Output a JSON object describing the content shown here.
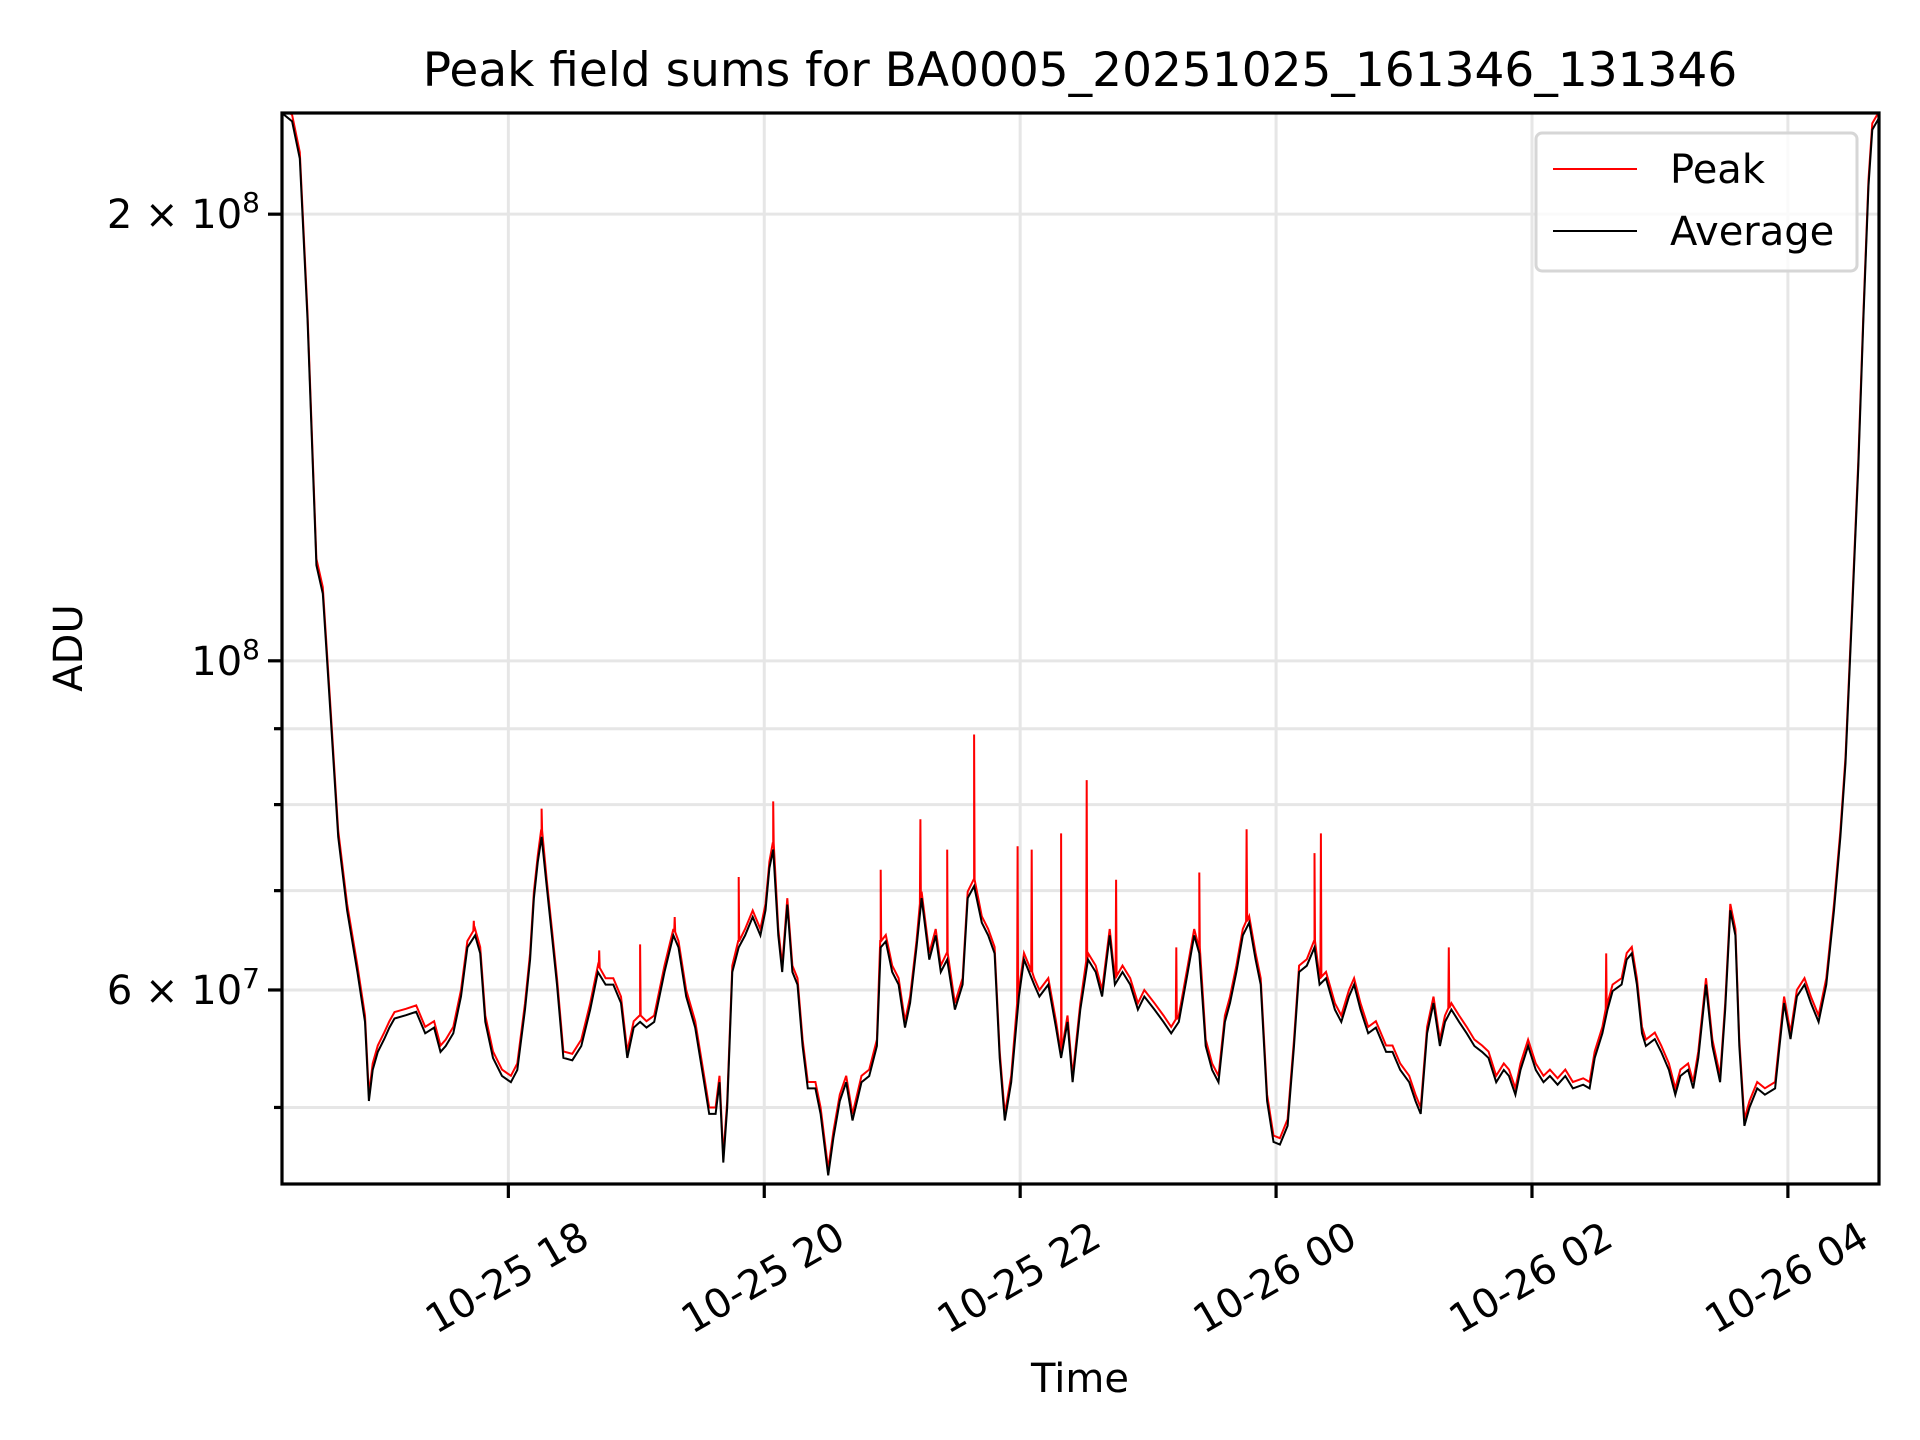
{
  "chart_data": {
    "type": "line",
    "title": "Peak field sums for BA0005_20251025_161346_131346",
    "xlabel": "Time",
    "ylabel": "ADU",
    "x_unit": "hours since 2025-10-25 00:00",
    "xlim": [
      16.231,
      28.712
    ],
    "ylim": [
      44400000,
      234000000
    ],
    "yscale": "log",
    "grid": true,
    "legend_position": "top-right",
    "xticks": [
      {
        "value": 18,
        "label": "10-25 18"
      },
      {
        "value": 20,
        "label": "10-25 20"
      },
      {
        "value": 22,
        "label": "10-25 22"
      },
      {
        "value": 24,
        "label": "10-26 00"
      },
      {
        "value": 26,
        "label": "10-26 02"
      },
      {
        "value": 28,
        "label": "10-26 04"
      }
    ],
    "yticks": [
      {
        "value": 200000000,
        "mantissa": "2 × 10",
        "exp": "8"
      },
      {
        "value": 100000000,
        "mantissa": "10",
        "exp": "8"
      },
      {
        "value": 60000000,
        "mantissa": "6 × 10",
        "exp": "7"
      }
    ],
    "y_minor_gridlines": [
      50000000,
      70000000,
      80000000,
      90000000
    ],
    "series": [
      {
        "name": "Peak",
        "color": "#ff0000",
        "ratio_to_average": 1.01,
        "spikes": [
          [
            17.73,
            66800000.0
          ],
          [
            18.26,
            79500000.0
          ],
          [
            18.71,
            63800000.0
          ],
          [
            19.03,
            64400000.0
          ],
          [
            19.3,
            67200000.0
          ],
          [
            19.8,
            71500000.0
          ],
          [
            20.07,
            80400000.0
          ],
          [
            20.91,
            72300000.0
          ],
          [
            21.22,
            78200000.0
          ],
          [
            21.43,
            74600000.0
          ],
          [
            21.64,
            89200000.0
          ],
          [
            21.98,
            75000000.0
          ],
          [
            22.09,
            74600000.0
          ],
          [
            22.32,
            76500000.0
          ],
          [
            22.52,
            83100000.0
          ],
          [
            22.75,
            71200000.0
          ],
          [
            23.22,
            64100000.0
          ],
          [
            23.4,
            72000000.0
          ],
          [
            23.77,
            77000000.0
          ],
          [
            24.3,
            74200000.0
          ],
          [
            24.35,
            76500000.0
          ],
          [
            25.35,
            64100000.0
          ],
          [
            26.58,
            63500000.0
          ]
        ]
      },
      {
        "name": "Average",
        "color": "#000000",
        "points": [
          [
            16.23,
            234000000.0
          ],
          [
            16.31,
            231000000.0
          ],
          [
            16.37,
            218000000.0
          ],
          [
            16.43,
            170000000.0
          ],
          [
            16.5,
            116000000.0
          ],
          [
            16.55,
            111000000.0
          ],
          [
            16.61,
            92100000.0
          ],
          [
            16.67,
            76100000.0
          ],
          [
            16.74,
            67900000.0
          ],
          [
            16.82,
            61700000.0
          ],
          [
            16.88,
            57100000.0
          ],
          [
            16.91,
            50500000.0
          ],
          [
            16.94,
            53000000.0
          ],
          [
            16.98,
            54500000.0
          ],
          [
            17.03,
            55600000.0
          ],
          [
            17.07,
            56600000.0
          ],
          [
            17.11,
            57400000.0
          ],
          [
            17.2,
            57700000.0
          ],
          [
            17.28,
            58000000.0
          ],
          [
            17.35,
            56100000.0
          ],
          [
            17.42,
            56600000.0
          ],
          [
            17.47,
            54500000.0
          ],
          [
            17.51,
            55000000.0
          ],
          [
            17.57,
            56100000.0
          ],
          [
            17.63,
            59400000.0
          ],
          [
            17.68,
            64100000.0
          ],
          [
            17.74,
            65300000.0
          ],
          [
            17.78,
            63500000.0
          ],
          [
            17.82,
            57100000.0
          ],
          [
            17.88,
            54000000.0
          ],
          [
            17.95,
            52500000.0
          ],
          [
            18.02,
            52000000.0
          ],
          [
            18.07,
            53000000.0
          ],
          [
            18.13,
            58200000.0
          ],
          [
            18.17,
            62900000.0
          ],
          [
            18.2,
            69200000.0
          ],
          [
            18.23,
            73200000.0
          ],
          [
            18.26,
            76100000.0
          ],
          [
            18.3,
            70500000.0
          ],
          [
            18.34,
            65300000.0
          ],
          [
            18.38,
            60500000.0
          ],
          [
            18.43,
            54000000.0
          ],
          [
            18.5,
            53800000.0
          ],
          [
            18.57,
            55000000.0
          ],
          [
            18.64,
            58200000.0
          ],
          [
            18.7,
            61700000.0
          ],
          [
            18.76,
            60500000.0
          ],
          [
            18.82,
            60500000.0
          ],
          [
            18.88,
            58800000.0
          ],
          [
            18.93,
            54000000.0
          ],
          [
            18.98,
            56600000.0
          ],
          [
            19.03,
            57100000.0
          ],
          [
            19.08,
            56600000.0
          ],
          [
            19.14,
            57100000.0
          ],
          [
            19.22,
            61700000.0
          ],
          [
            19.29,
            65300000.0
          ],
          [
            19.33,
            64100000.0
          ],
          [
            19.39,
            59400000.0
          ],
          [
            19.46,
            56600000.0
          ],
          [
            19.53,
            52000000.0
          ],
          [
            19.57,
            49500000.0
          ],
          [
            19.62,
            49500000.0
          ],
          [
            19.65,
            52000000.0
          ],
          [
            19.68,
            45900000.0
          ],
          [
            19.71,
            50000000.0
          ],
          [
            19.75,
            61700000.0
          ],
          [
            19.8,
            64100000.0
          ],
          [
            19.85,
            65300000.0
          ],
          [
            19.91,
            67200000.0
          ],
          [
            19.97,
            65300000.0
          ],
          [
            20.01,
            67900000.0
          ],
          [
            20.04,
            72500000.0
          ],
          [
            20.07,
            74600000.0
          ],
          [
            20.11,
            65300000.0
          ],
          [
            20.14,
            61700000.0
          ],
          [
            20.18,
            68500000.0
          ],
          [
            20.22,
            61700000.0
          ],
          [
            20.26,
            60500000.0
          ],
          [
            20.3,
            55000000.0
          ],
          [
            20.34,
            51500000.0
          ],
          [
            20.4,
            51500000.0
          ],
          [
            20.44,
            49500000.0
          ],
          [
            20.5,
            45000000.0
          ],
          [
            20.54,
            47700000.0
          ],
          [
            20.59,
            50500000.0
          ],
          [
            20.64,
            52000000.0
          ],
          [
            20.69,
            49000000.0
          ],
          [
            20.76,
            52000000.0
          ],
          [
            20.82,
            52500000.0
          ],
          [
            20.88,
            55000000.0
          ],
          [
            20.91,
            64100000.0
          ],
          [
            20.95,
            64700000.0
          ],
          [
            21.0,
            61700000.0
          ],
          [
            21.05,
            60500000.0
          ],
          [
            21.1,
            56600000.0
          ],
          [
            21.14,
            58800000.0
          ],
          [
            21.19,
            64100000.0
          ],
          [
            21.23,
            69200000.0
          ],
          [
            21.29,
            62900000.0
          ],
          [
            21.34,
            65300000.0
          ],
          [
            21.38,
            61700000.0
          ],
          [
            21.43,
            62900000.0
          ],
          [
            21.49,
            58200000.0
          ],
          [
            21.55,
            60500000.0
          ],
          [
            21.59,
            69200000.0
          ],
          [
            21.64,
            70500000.0
          ],
          [
            21.7,
            66600000.0
          ],
          [
            21.75,
            65300000.0
          ],
          [
            21.8,
            63500000.0
          ],
          [
            21.84,
            54000000.0
          ],
          [
            21.88,
            49000000.0
          ],
          [
            21.93,
            52000000.0
          ],
          [
            21.99,
            59400000.0
          ],
          [
            22.03,
            62900000.0
          ],
          [
            22.07,
            61700000.0
          ],
          [
            22.11,
            60500000.0
          ],
          [
            22.15,
            59400000.0
          ],
          [
            22.22,
            60500000.0
          ],
          [
            22.28,
            56600000.0
          ],
          [
            22.32,
            54000000.0
          ],
          [
            22.37,
            57100000.0
          ],
          [
            22.41,
            52000000.0
          ],
          [
            22.47,
            58200000.0
          ],
          [
            22.53,
            62900000.0
          ],
          [
            22.59,
            61700000.0
          ],
          [
            22.64,
            59400000.0
          ],
          [
            22.7,
            65300000.0
          ],
          [
            22.74,
            60500000.0
          ],
          [
            22.8,
            61700000.0
          ],
          [
            22.86,
            60500000.0
          ],
          [
            22.92,
            58200000.0
          ],
          [
            22.97,
            59400000.0
          ],
          [
            23.05,
            58200000.0
          ],
          [
            23.12,
            57100000.0
          ],
          [
            23.18,
            56100000.0
          ],
          [
            23.24,
            57100000.0
          ],
          [
            23.31,
            61700000.0
          ],
          [
            23.36,
            65300000.0
          ],
          [
            23.4,
            63500000.0
          ],
          [
            23.45,
            55000000.0
          ],
          [
            23.5,
            53000000.0
          ],
          [
            23.55,
            52000000.0
          ],
          [
            23.6,
            57100000.0
          ],
          [
            23.64,
            58800000.0
          ],
          [
            23.69,
            61700000.0
          ],
          [
            23.74,
            65300000.0
          ],
          [
            23.79,
            66600000.0
          ],
          [
            23.84,
            62900000.0
          ],
          [
            23.88,
            60500000.0
          ],
          [
            23.93,
            50500000.0
          ],
          [
            23.98,
            47400000.0
          ],
          [
            24.03,
            47200000.0
          ],
          [
            24.09,
            48600000.0
          ],
          [
            24.14,
            55000000.0
          ],
          [
            24.18,
            61700000.0
          ],
          [
            24.24,
            62300000.0
          ],
          [
            24.3,
            64100000.0
          ],
          [
            24.34,
            60500000.0
          ],
          [
            24.39,
            61100000.0
          ],
          [
            24.46,
            58200000.0
          ],
          [
            24.51,
            57100000.0
          ],
          [
            24.57,
            59400000.0
          ],
          [
            24.61,
            60500000.0
          ],
          [
            24.66,
            58200000.0
          ],
          [
            24.72,
            56100000.0
          ],
          [
            24.78,
            56600000.0
          ],
          [
            24.86,
            54500000.0
          ],
          [
            24.91,
            54500000.0
          ],
          [
            24.97,
            53000000.0
          ],
          [
            25.04,
            52000000.0
          ],
          [
            25.09,
            50500000.0
          ],
          [
            25.13,
            49500000.0
          ],
          [
            25.18,
            56100000.0
          ],
          [
            25.23,
            58800000.0
          ],
          [
            25.28,
            55000000.0
          ],
          [
            25.32,
            57100000.0
          ],
          [
            25.37,
            58200000.0
          ],
          [
            25.43,
            57100000.0
          ],
          [
            25.49,
            56100000.0
          ],
          [
            25.55,
            55000000.0
          ],
          [
            25.61,
            54500000.0
          ],
          [
            25.66,
            54000000.0
          ],
          [
            25.72,
            52000000.0
          ],
          [
            25.78,
            53000000.0
          ],
          [
            25.82,
            52500000.0
          ],
          [
            25.87,
            51000000.0
          ],
          [
            25.91,
            53000000.0
          ],
          [
            25.97,
            55000000.0
          ],
          [
            26.03,
            53000000.0
          ],
          [
            26.09,
            52000000.0
          ],
          [
            26.14,
            52500000.0
          ],
          [
            26.2,
            51800000.0
          ],
          [
            26.26,
            52500000.0
          ],
          [
            26.32,
            51500000.0
          ],
          [
            26.4,
            51800000.0
          ],
          [
            26.45,
            51500000.0
          ],
          [
            26.49,
            54000000.0
          ],
          [
            26.55,
            56100000.0
          ],
          [
            26.59,
            58200000.0
          ],
          [
            26.63,
            59900000.0
          ],
          [
            26.7,
            60500000.0
          ],
          [
            26.74,
            62900000.0
          ],
          [
            26.78,
            63500000.0
          ],
          [
            26.82,
            60500000.0
          ],
          [
            26.86,
            56100000.0
          ],
          [
            26.89,
            55000000.0
          ],
          [
            26.96,
            55600000.0
          ],
          [
            27.01,
            54500000.0
          ],
          [
            27.07,
            53000000.0
          ],
          [
            27.12,
            51000000.0
          ],
          [
            27.16,
            52500000.0
          ],
          [
            27.22,
            53000000.0
          ],
          [
            27.26,
            51500000.0
          ],
          [
            27.3,
            54000000.0
          ],
          [
            27.36,
            60500000.0
          ],
          [
            27.41,
            55000000.0
          ],
          [
            27.47,
            52000000.0
          ],
          [
            27.51,
            58200000.0
          ],
          [
            27.55,
            67900000.0
          ],
          [
            27.59,
            65300000.0
          ],
          [
            27.62,
            55000000.0
          ],
          [
            27.66,
            48600000.0
          ],
          [
            27.7,
            50000000.0
          ],
          [
            27.76,
            51500000.0
          ],
          [
            27.82,
            51000000.0
          ],
          [
            27.9,
            51500000.0
          ],
          [
            27.93,
            54500000.0
          ],
          [
            27.97,
            58800000.0
          ],
          [
            28.02,
            55600000.0
          ],
          [
            28.07,
            59400000.0
          ],
          [
            28.13,
            60500000.0
          ],
          [
            28.18,
            58800000.0
          ],
          [
            28.24,
            57100000.0
          ],
          [
            28.3,
            60500000.0
          ],
          [
            28.36,
            67900000.0
          ],
          [
            28.41,
            76100000.0
          ],
          [
            28.45,
            85300000.0
          ],
          [
            28.5,
            107000000.0
          ],
          [
            28.55,
            135000000.0
          ],
          [
            28.59,
            170000000.0
          ],
          [
            28.63,
            209000000.0
          ],
          [
            28.66,
            228000000.0
          ],
          [
            28.71,
            232000000.0
          ]
        ]
      }
    ]
  }
}
